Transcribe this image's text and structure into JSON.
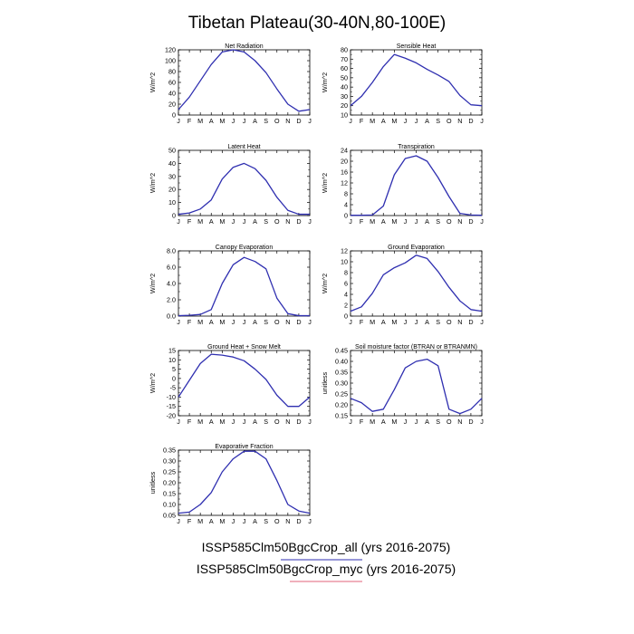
{
  "figure": {
    "title": "Tibetan Plateau(30-40N,80-100E)"
  },
  "legend": {
    "items": [
      {
        "label": "ISSP585Clm50BgcCrop_all (yrs 2016-2075)",
        "color": "#2f2fb0"
      },
      {
        "label": "ISSP585Clm50BgcCrop_myc (yrs 2016-2075)",
        "color": "#e0607a"
      }
    ]
  },
  "chart_data": [
    {
      "type": "line",
      "title": "Net Radiation",
      "ylabel": "W/m^2",
      "categories": [
        "J",
        "F",
        "M",
        "A",
        "M",
        "J",
        "J",
        "A",
        "S",
        "O",
        "N",
        "D",
        "J"
      ],
      "ylim": [
        0,
        120
      ],
      "yticks": [
        "0",
        "20",
        "40",
        "60",
        "80",
        "100",
        "120"
      ],
      "series": [
        {
          "values": [
            10,
            33,
            63,
            93,
            116,
            120,
            116,
            100,
            78,
            48,
            20,
            7,
            10
          ]
        }
      ]
    },
    {
      "type": "line",
      "title": "Sensible Heat",
      "ylabel": "W/m^2",
      "categories": [
        "J",
        "F",
        "M",
        "A",
        "M",
        "J",
        "J",
        "A",
        "S",
        "O",
        "N",
        "D",
        "J"
      ],
      "ylim": [
        10,
        80
      ],
      "yticks": [
        "10",
        "20",
        "30",
        "40",
        "50",
        "60",
        "70",
        "80"
      ],
      "series": [
        {
          "values": [
            20,
            30,
            45,
            62,
            75,
            71,
            66,
            59,
            53,
            46,
            31,
            21,
            20
          ]
        }
      ]
    },
    {
      "type": "line",
      "title": "Latent Heat",
      "ylabel": "W/m^2",
      "categories": [
        "J",
        "F",
        "M",
        "A",
        "M",
        "J",
        "J",
        "A",
        "S",
        "O",
        "N",
        "D",
        "J"
      ],
      "ylim": [
        0,
        50
      ],
      "yticks": [
        "0",
        "10",
        "20",
        "30",
        "40",
        "50"
      ],
      "series": [
        {
          "values": [
            1,
            2,
            5,
            12,
            28,
            37,
            40,
            36,
            27,
            14,
            4,
            1,
            1
          ]
        }
      ]
    },
    {
      "type": "line",
      "title": "Transpiration",
      "ylabel": "W/m^2",
      "categories": [
        "J",
        "F",
        "M",
        "A",
        "M",
        "J",
        "J",
        "A",
        "S",
        "O",
        "N",
        "D",
        "J"
      ],
      "ylim": [
        0,
        24
      ],
      "yticks": [
        "0",
        "4",
        "8",
        "12",
        "16",
        "20",
        "24"
      ],
      "series": [
        {
          "values": [
            0.1,
            0.1,
            0.2,
            3.5,
            15,
            21,
            22,
            20,
            14,
            7,
            0.8,
            0.2,
            0.1
          ]
        }
      ]
    },
    {
      "type": "line",
      "title": "Canopy Evaporation",
      "ylabel": "W/m^2",
      "categories": [
        "J",
        "F",
        "M",
        "A",
        "M",
        "J",
        "J",
        "A",
        "S",
        "O",
        "N",
        "D",
        "J"
      ],
      "ylim": [
        0,
        8
      ],
      "yticks": [
        "0.0",
        "2.0",
        "4.0",
        "6.0",
        "8.0"
      ],
      "series": [
        {
          "values": [
            0.05,
            0.1,
            0.2,
            0.8,
            4.0,
            6.3,
            7.2,
            6.7,
            5.8,
            2.2,
            0.3,
            0.05,
            0.05
          ]
        }
      ]
    },
    {
      "type": "line",
      "title": "Ground Evaporation",
      "ylabel": "W/m^2",
      "categories": [
        "J",
        "F",
        "M",
        "A",
        "M",
        "J",
        "J",
        "A",
        "S",
        "O",
        "N",
        "D",
        "J"
      ],
      "ylim": [
        0,
        12
      ],
      "yticks": [
        "0",
        "2",
        "4",
        "6",
        "8",
        "10",
        "12"
      ],
      "series": [
        {
          "values": [
            0.9,
            1.7,
            4.2,
            7.6,
            8.9,
            9.8,
            11.2,
            10.6,
            8.2,
            5.3,
            2.8,
            1.2,
            0.9
          ]
        }
      ]
    },
    {
      "type": "line",
      "title": "Ground Heat + Snow Melt",
      "ylabel": "W/m^2",
      "categories": [
        "J",
        "F",
        "M",
        "A",
        "M",
        "J",
        "J",
        "A",
        "S",
        "O",
        "N",
        "D",
        "J"
      ],
      "ylim": [
        -20,
        15
      ],
      "yticks": [
        "-20",
        "-15",
        "-10",
        "-5",
        "0",
        "5",
        "10",
        "15"
      ],
      "series": [
        {
          "values": [
            -10,
            -1,
            8,
            13,
            12.5,
            11.5,
            9.5,
            5,
            -0.5,
            -9,
            -15,
            -15,
            -10
          ]
        }
      ]
    },
    {
      "type": "line",
      "title": "Soil moisture factor (BTRAN or BTRANMN)",
      "ylabel": "unitless",
      "categories": [
        "J",
        "F",
        "M",
        "A",
        "M",
        "J",
        "J",
        "A",
        "S",
        "O",
        "N",
        "D",
        "J"
      ],
      "ylim": [
        0.15,
        0.45
      ],
      "yticks": [
        "0.15",
        "0.20",
        "0.25",
        "0.30",
        "0.35",
        "0.40",
        "0.45"
      ],
      "series": [
        {
          "values": [
            0.23,
            0.21,
            0.17,
            0.18,
            0.27,
            0.37,
            0.4,
            0.41,
            0.38,
            0.18,
            0.16,
            0.18,
            0.23
          ]
        }
      ]
    },
    {
      "type": "line",
      "title": "Evaporative Fraction",
      "ylabel": "unitless",
      "categories": [
        "J",
        "F",
        "M",
        "A",
        "M",
        "J",
        "J",
        "A",
        "S",
        "O",
        "N",
        "D",
        "J"
      ],
      "ylim": [
        0.05,
        0.35
      ],
      "yticks": [
        "0.05",
        "0.10",
        "0.15",
        "0.20",
        "0.25",
        "0.30",
        "0.35"
      ],
      "series": [
        {
          "values": [
            0.06,
            0.065,
            0.1,
            0.155,
            0.25,
            0.31,
            0.345,
            0.345,
            0.31,
            0.21,
            0.1,
            0.07,
            0.06
          ]
        }
      ]
    }
  ]
}
